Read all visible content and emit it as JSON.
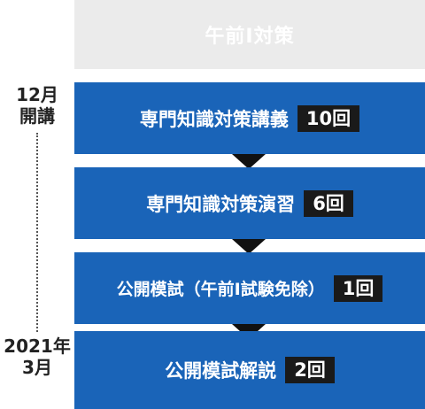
{
  "timeline": {
    "start_line1": "12月",
    "start_line2": "開講",
    "end_line1": "2021年",
    "end_line2": "3月"
  },
  "header": {
    "title": "午前Ⅰ対策"
  },
  "steps": [
    {
      "label": "専門知識対策講義",
      "count": "10回"
    },
    {
      "label": "専門知識対策演習",
      "count": "6回"
    },
    {
      "label": "公開模試（午前Ⅰ試験免除）",
      "count": "1回"
    },
    {
      "label": "公開模試解説",
      "count": "2回"
    }
  ],
  "colors": {
    "step_bg": "#1a64b8",
    "header_bg": "#ebebeb",
    "badge_bg": "#1a1a1a",
    "arrow": "#111111"
  },
  "icons": {
    "arrow": "arrow-down-icon"
  }
}
